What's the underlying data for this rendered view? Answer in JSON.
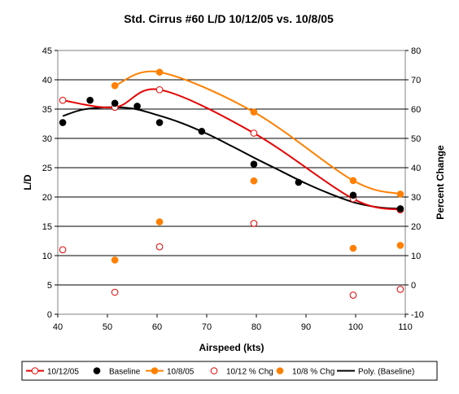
{
  "chart_data": {
    "type": "scatter",
    "title": "Std. Cirrus #60 L/D 10/12/05 vs. 10/8/05",
    "xlabel": "Airspeed (kts)",
    "ylabel": "L/D",
    "y2label": "Percent Change",
    "xlim": [
      40,
      110
    ],
    "ylim": [
      0,
      45
    ],
    "y2lim": [
      -10,
      80
    ],
    "x_ticks": [
      "40",
      "50",
      "60",
      "70",
      "80",
      "90",
      "100",
      "110"
    ],
    "y_ticks": [
      "0",
      "5",
      "10",
      "15",
      "20",
      "25",
      "30",
      "35",
      "40",
      "45"
    ],
    "y2_ticks": [
      "-10",
      "0",
      "10",
      "20",
      "30",
      "40",
      "50",
      "60",
      "70",
      "80"
    ],
    "grid": "horizontal",
    "legend_position": "bottom",
    "series": [
      {
        "name": "10/12/05",
        "axis": "left",
        "style": "open-circle-smooth-line",
        "color": "#e60000",
        "x": [
          41,
          51.5,
          60.5,
          79.5,
          99.5,
          109
        ],
        "y": [
          36.5,
          35.3,
          38.3,
          30.9,
          19.7,
          17.8
        ]
      },
      {
        "name": "Baseline",
        "axis": "left",
        "style": "filled-circle",
        "color": "#000000",
        "x": [
          41,
          46.5,
          51.5,
          56,
          60.5,
          69,
          79.5,
          88.5,
          99.5,
          109
        ],
        "y": [
          32.7,
          36.5,
          36.0,
          35.5,
          32.7,
          31.2,
          25.6,
          22.5,
          20.3,
          18.0
        ]
      },
      {
        "name": "10/8/05",
        "axis": "left",
        "style": "filled-circle-smooth-line",
        "color": "#ff8000",
        "x": [
          51.5,
          60.5,
          79.5,
          99.5,
          109
        ],
        "y": [
          39.0,
          41.3,
          34.5,
          22.8,
          20.5
        ]
      },
      {
        "name": "10/12 % Chg",
        "axis": "right",
        "style": "open-circle",
        "color": "#e60000",
        "x": [
          41,
          51.5,
          60.5,
          79.5,
          99.5,
          109
        ],
        "y": [
          12,
          -2.5,
          13,
          21,
          -3.5,
          -1.5
        ]
      },
      {
        "name": "10/8 % Chg",
        "axis": "right",
        "style": "filled-circle",
        "color": "#ff8000",
        "x": [
          51.5,
          60.5,
          79.5,
          99.5,
          109
        ],
        "y": [
          8.5,
          21.5,
          35.5,
          12.5,
          13.5
        ]
      },
      {
        "name": "Poly. (Baseline)",
        "axis": "left",
        "style": "trendline",
        "color": "#000000",
        "x": [
          41,
          45,
          50,
          55,
          60,
          65,
          70,
          75,
          80,
          85,
          90,
          95,
          100,
          105,
          109
        ],
        "y": [
          33.8,
          34.9,
          35.3,
          35.1,
          34.0,
          32.6,
          30.8,
          28.7,
          26.5,
          24.4,
          22.3,
          20.5,
          19.0,
          18.2,
          18.0
        ]
      }
    ]
  }
}
